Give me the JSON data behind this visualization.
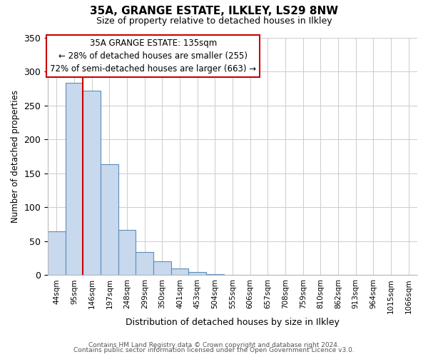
{
  "title": "35A, GRANGE ESTATE, ILKLEY, LS29 8NW",
  "subtitle": "Size of property relative to detached houses in Ilkley",
  "xlabel": "Distribution of detached houses by size in Ilkley",
  "ylabel": "Number of detached properties",
  "bar_labels": [
    "44sqm",
    "95sqm",
    "146sqm",
    "197sqm",
    "248sqm",
    "299sqm",
    "350sqm",
    "401sqm",
    "453sqm",
    "504sqm",
    "555sqm",
    "606sqm",
    "657sqm",
    "708sqm",
    "759sqm",
    "810sqm",
    "862sqm",
    "913sqm",
    "964sqm",
    "1015sqm",
    "1066sqm"
  ],
  "bar_values": [
    65,
    283,
    272,
    163,
    67,
    34,
    20,
    10,
    5,
    2,
    0,
    0,
    1,
    0,
    0,
    0,
    0,
    0,
    0,
    1,
    1
  ],
  "bar_color": "#c8d9ed",
  "bar_edge_color": "#5b8db8",
  "vline_x": 1.5,
  "vline_color": "#cc0000",
  "ylim": [
    0,
    350
  ],
  "yticks": [
    0,
    50,
    100,
    150,
    200,
    250,
    300,
    350
  ],
  "annotation_title": "35A GRANGE ESTATE: 135sqm",
  "annotation_line1": "← 28% of detached houses are smaller (255)",
  "annotation_line2": "72% of semi-detached houses are larger (663) →",
  "footer1": "Contains HM Land Registry data © Crown copyright and database right 2024.",
  "footer2": "Contains public sector information licensed under the Open Government Licence v3.0.",
  "background_color": "#ffffff",
  "grid_color": "#cccccc"
}
